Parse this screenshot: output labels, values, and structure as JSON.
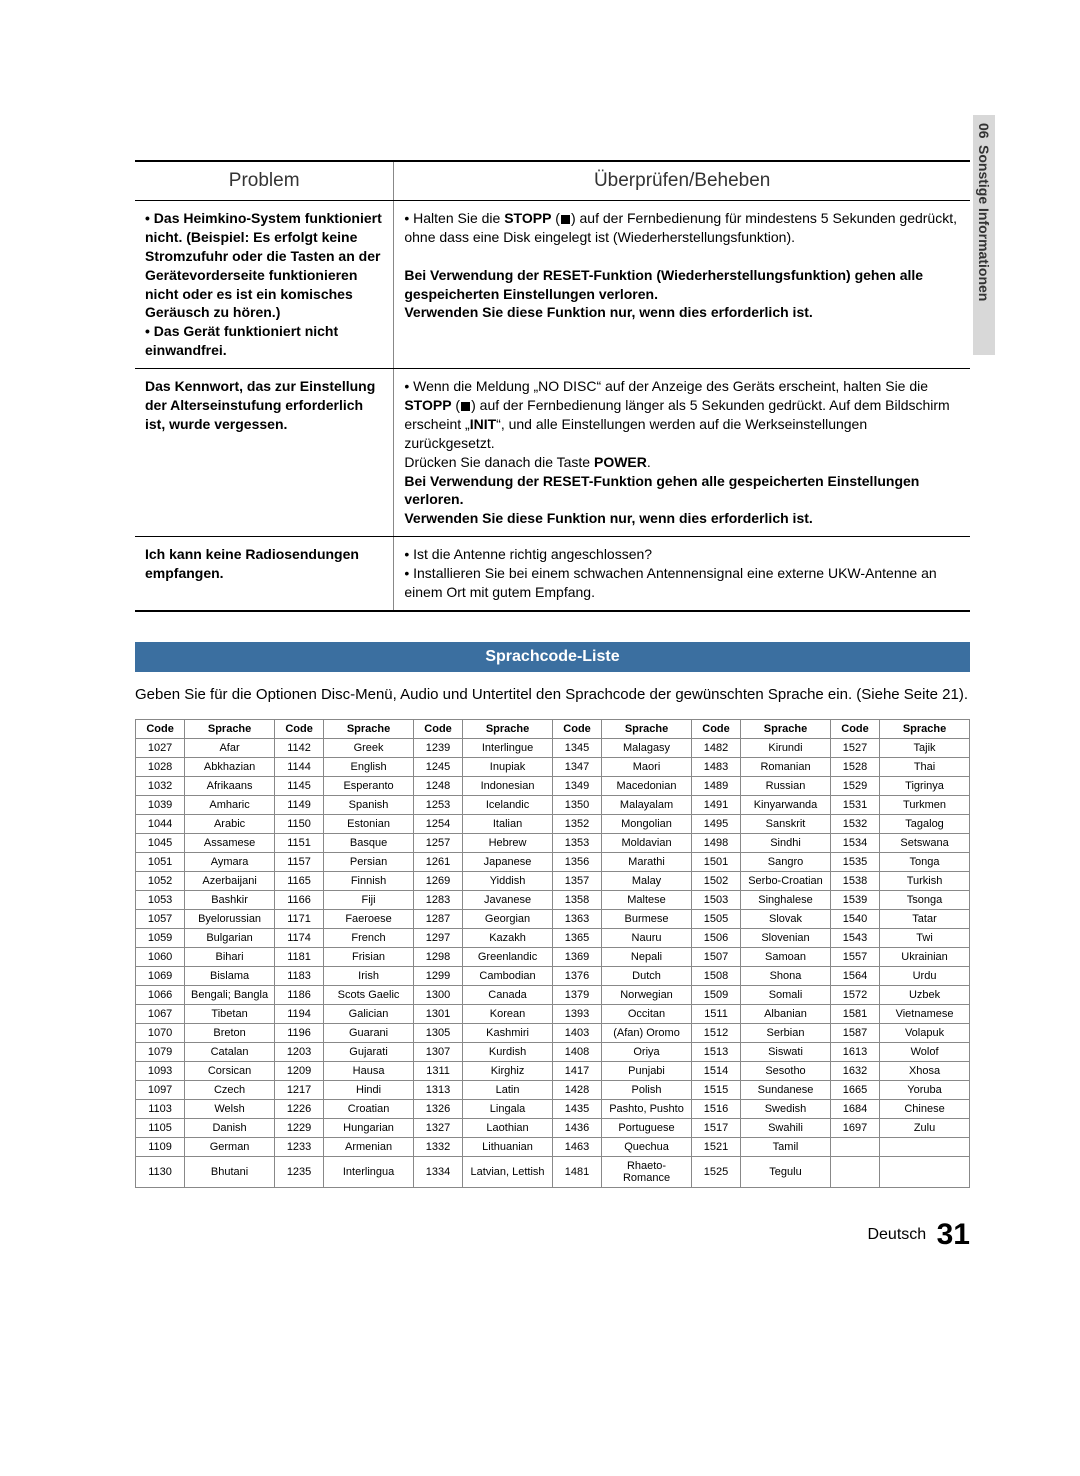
{
  "sidebar": {
    "chapter": "06",
    "label": "Sonstige Informationen"
  },
  "trouble": {
    "head_problem": "Problem",
    "head_fix": "Überprüfen/Beheben",
    "rows": [
      {
        "problem": "• Das Heimkino-System funktioniert nicht. (Beispiel: Es erfolgt keine Stromzufuhr oder die Tasten an der Gerätevorderseite funktionieren nicht oder es ist ein komisches Geräusch zu hören.)\n• Das Gerät funktioniert nicht einwandfrei.",
        "fix_html": "• Halten Sie die <b>STOPP</b> (<span class='stop-icon' data-name='stop-icon' data-interactable='false'></span>) auf der Fernbedienung für mindestens 5 Sekunden gedrückt, ohne dass eine Disk eingelegt ist (Wiederherstellungsfunktion).<br><br><b>Bei Verwendung der RESET-Funktion (Wiederherstellungsfunktion) gehen alle gespeicherten Einstellungen verloren.<br>Verwenden Sie diese Funktion nur, wenn dies erforderlich ist.</b>"
      },
      {
        "problem": "Das Kennwort, das zur Einstellung der Alterseinstufung erforderlich ist, wurde vergessen.",
        "fix_html": "• Wenn die Meldung „NO DISC“ auf der Anzeige des Geräts erscheint, halten Sie die <b>STOPP</b> (<span class='stop-icon' data-name='stop-icon' data-interactable='false'></span>) auf der Fernbedienung länger als 5 Sekunden gedrückt. Auf dem Bildschirm erscheint „<b>INIT</b>“, und alle Einstellungen werden auf die Werkseinstellungen zurückgesetzt.<br>Drücken Sie danach die Taste <b>POWER</b>.<br><b>Bei Verwendung der RESET-Funktion gehen alle gespeicherten Einstellungen verloren.<br>Verwenden Sie diese Funktion nur, wenn dies erforderlich ist.</b>"
      },
      {
        "problem": "Ich kann keine Radiosendungen empfangen.",
        "fix_html": "• Ist die Antenne richtig angeschlossen?<br>• Installieren Sie bei einem schwachen Antennensignal eine externe UKW-Antenne an einem Ort mit gutem Empfang."
      }
    ]
  },
  "langSection": {
    "title": "Sprachcode-Liste",
    "intro": "Geben Sie für die Optionen Disc-Menü, Audio und Untertitel den Sprachcode der gewünschten Sprache ein. (Siehe Seite 21).",
    "head_code": "Code",
    "head_lang": "Sprache",
    "columns": [
      [
        [
          "1027",
          "Afar"
        ],
        [
          "1028",
          "Abkhazian"
        ],
        [
          "1032",
          "Afrikaans"
        ],
        [
          "1039",
          "Amharic"
        ],
        [
          "1044",
          "Arabic"
        ],
        [
          "1045",
          "Assamese"
        ],
        [
          "1051",
          "Aymara"
        ],
        [
          "1052",
          "Azerbaijani"
        ],
        [
          "1053",
          "Bashkir"
        ],
        [
          "1057",
          "Byelorussian"
        ],
        [
          "1059",
          "Bulgarian"
        ],
        [
          "1060",
          "Bihari"
        ],
        [
          "1069",
          "Bislama"
        ],
        [
          "1066",
          "Bengali; Bangla"
        ],
        [
          "1067",
          "Tibetan"
        ],
        [
          "1070",
          "Breton"
        ],
        [
          "1079",
          "Catalan"
        ],
        [
          "1093",
          "Corsican"
        ],
        [
          "1097",
          "Czech"
        ],
        [
          "1103",
          "Welsh"
        ],
        [
          "1105",
          "Danish"
        ],
        [
          "1109",
          "German"
        ],
        [
          "1130",
          "Bhutani"
        ]
      ],
      [
        [
          "1142",
          "Greek"
        ],
        [
          "1144",
          "English"
        ],
        [
          "1145",
          "Esperanto"
        ],
        [
          "1149",
          "Spanish"
        ],
        [
          "1150",
          "Estonian"
        ],
        [
          "1151",
          "Basque"
        ],
        [
          "1157",
          "Persian"
        ],
        [
          "1165",
          "Finnish"
        ],
        [
          "1166",
          "Fiji"
        ],
        [
          "1171",
          "Faeroese"
        ],
        [
          "1174",
          "French"
        ],
        [
          "1181",
          "Frisian"
        ],
        [
          "1183",
          "Irish"
        ],
        [
          "1186",
          "Scots Gaelic"
        ],
        [
          "1194",
          "Galician"
        ],
        [
          "1196",
          "Guarani"
        ],
        [
          "1203",
          "Gujarati"
        ],
        [
          "1209",
          "Hausa"
        ],
        [
          "1217",
          "Hindi"
        ],
        [
          "1226",
          "Croatian"
        ],
        [
          "1229",
          "Hungarian"
        ],
        [
          "1233",
          "Armenian"
        ],
        [
          "1235",
          "Interlingua"
        ]
      ],
      [
        [
          "1239",
          "Interlingue"
        ],
        [
          "1245",
          "Inupiak"
        ],
        [
          "1248",
          "Indonesian"
        ],
        [
          "1253",
          "Icelandic"
        ],
        [
          "1254",
          "Italian"
        ],
        [
          "1257",
          "Hebrew"
        ],
        [
          "1261",
          "Japanese"
        ],
        [
          "1269",
          "Yiddish"
        ],
        [
          "1283",
          "Javanese"
        ],
        [
          "1287",
          "Georgian"
        ],
        [
          "1297",
          "Kazakh"
        ],
        [
          "1298",
          "Greenlandic"
        ],
        [
          "1299",
          "Cambodian"
        ],
        [
          "1300",
          "Canada"
        ],
        [
          "1301",
          "Korean"
        ],
        [
          "1305",
          "Kashmiri"
        ],
        [
          "1307",
          "Kurdish"
        ],
        [
          "1311",
          "Kirghiz"
        ],
        [
          "1313",
          "Latin"
        ],
        [
          "1326",
          "Lingala"
        ],
        [
          "1327",
          "Laothian"
        ],
        [
          "1332",
          "Lithuanian"
        ],
        [
          "1334",
          "Latvian, Lettish"
        ]
      ],
      [
        [
          "1345",
          "Malagasy"
        ],
        [
          "1347",
          "Maori"
        ],
        [
          "1349",
          "Macedonian"
        ],
        [
          "1350",
          "Malayalam"
        ],
        [
          "1352",
          "Mongolian"
        ],
        [
          "1353",
          "Moldavian"
        ],
        [
          "1356",
          "Marathi"
        ],
        [
          "1357",
          "Malay"
        ],
        [
          "1358",
          "Maltese"
        ],
        [
          "1363",
          "Burmese"
        ],
        [
          "1365",
          "Nauru"
        ],
        [
          "1369",
          "Nepali"
        ],
        [
          "1376",
          "Dutch"
        ],
        [
          "1379",
          "Norwegian"
        ],
        [
          "1393",
          "Occitan"
        ],
        [
          "1403",
          "(Afan) Oromo"
        ],
        [
          "1408",
          "Oriya"
        ],
        [
          "1417",
          "Punjabi"
        ],
        [
          "1428",
          "Polish"
        ],
        [
          "1435",
          "Pashto, Pushto"
        ],
        [
          "1436",
          "Portuguese"
        ],
        [
          "1463",
          "Quechua"
        ],
        [
          "1481",
          "Rhaeto-Romance"
        ]
      ],
      [
        [
          "1482",
          "Kirundi"
        ],
        [
          "1483",
          "Romanian"
        ],
        [
          "1489",
          "Russian"
        ],
        [
          "1491",
          "Kinyarwanda"
        ],
        [
          "1495",
          "Sanskrit"
        ],
        [
          "1498",
          "Sindhi"
        ],
        [
          "1501",
          "Sangro"
        ],
        [
          "1502",
          "Serbo-Croatian"
        ],
        [
          "1503",
          "Singhalese"
        ],
        [
          "1505",
          "Slovak"
        ],
        [
          "1506",
          "Slovenian"
        ],
        [
          "1507",
          "Samoan"
        ],
        [
          "1508",
          "Shona"
        ],
        [
          "1509",
          "Somali"
        ],
        [
          "1511",
          "Albanian"
        ],
        [
          "1512",
          "Serbian"
        ],
        [
          "1513",
          "Siswati"
        ],
        [
          "1514",
          "Sesotho"
        ],
        [
          "1515",
          "Sundanese"
        ],
        [
          "1516",
          "Swedish"
        ],
        [
          "1517",
          "Swahili"
        ],
        [
          "1521",
          "Tamil"
        ],
        [
          "1525",
          "Tegulu"
        ]
      ],
      [
        [
          "1527",
          "Tajik"
        ],
        [
          "1528",
          "Thai"
        ],
        [
          "1529",
          "Tigrinya"
        ],
        [
          "1531",
          "Turkmen"
        ],
        [
          "1532",
          "Tagalog"
        ],
        [
          "1534",
          "Setswana"
        ],
        [
          "1535",
          "Tonga"
        ],
        [
          "1538",
          "Turkish"
        ],
        [
          "1539",
          "Tsonga"
        ],
        [
          "1540",
          "Tatar"
        ],
        [
          "1543",
          "Twi"
        ],
        [
          "1557",
          "Ukrainian"
        ],
        [
          "1564",
          "Urdu"
        ],
        [
          "1572",
          "Uzbek"
        ],
        [
          "1581",
          "Vietnamese"
        ],
        [
          "1587",
          "Volapuk"
        ],
        [
          "1613",
          "Wolof"
        ],
        [
          "1632",
          "Xhosa"
        ],
        [
          "1665",
          "Yoruba"
        ],
        [
          "1684",
          "Chinese"
        ],
        [
          "1697",
          "Zulu"
        ],
        [
          "",
          ""
        ],
        [
          "",
          ""
        ]
      ]
    ]
  },
  "footer": {
    "lang": "Deutsch",
    "page": "31"
  }
}
